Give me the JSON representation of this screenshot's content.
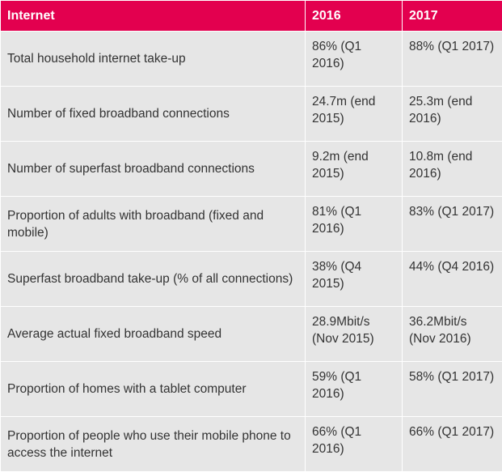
{
  "table": {
    "header": [
      "Internet",
      "2016",
      "2017"
    ],
    "rows": [
      [
        "Total household internet take-up",
        "86% (Q1 2016)",
        "88% (Q1 2017)"
      ],
      [
        "Number of fixed broadband connections",
        "24.7m (end 2015)",
        "25.3m (end 2016)"
      ],
      [
        "Number of superfast broadband connections",
        "9.2m (end 2015)",
        "10.8m (end 2016)"
      ],
      [
        "Proportion of adults with broadband (fixed and mobile)",
        "81% (Q1 2016)",
        "83% (Q1 2017)"
      ],
      [
        "Superfast broadband take-up (% of all connections)",
        "38% (Q4 2015)",
        "44% (Q4 2016)"
      ],
      [
        "Average actual fixed broadband speed",
        "28.9Mbit/s (Nov 2015)",
        "36.2Mbit/s (Nov 2016)"
      ],
      [
        "Proportion of homes with a tablet computer",
        "59% (Q1 2016)",
        "58% (Q1 2017)"
      ],
      [
        "Proportion of people who use their mobile phone to access the internet",
        "66% (Q1 2016)",
        "66% (Q1 2017)"
      ]
    ]
  }
}
